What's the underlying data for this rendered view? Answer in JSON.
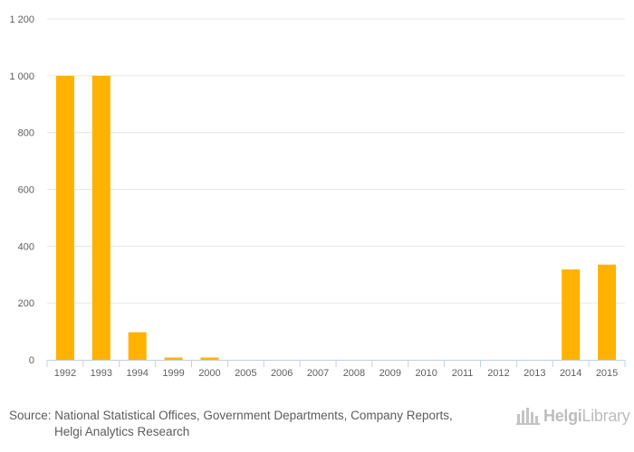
{
  "chart_data": {
    "type": "bar",
    "categories": [
      "1992",
      "1993",
      "1994",
      "1999",
      "2000",
      "2005",
      "2006",
      "2007",
      "2008",
      "2009",
      "2010",
      "2011",
      "2012",
      "2013",
      "2014",
      "2015"
    ],
    "values": [
      1000,
      1000,
      97,
      8,
      8,
      0,
      0,
      0,
      0,
      0,
      0,
      0,
      0,
      0,
      318,
      335
    ],
    "ylim": [
      0,
      1200
    ],
    "yticks": [
      0,
      200,
      400,
      600,
      800,
      1000,
      1200
    ],
    "ytick_labels": [
      "0",
      "200",
      "400",
      "600",
      "800",
      "1 000",
      "1 200"
    ],
    "title": "",
    "xlabel": "",
    "ylabel": "",
    "grid": true,
    "bar_color": "#FFB200"
  },
  "source": {
    "line1": "Source: National Statistical Offices, Government Departments, Company Reports,",
    "line2": "Helgi Analytics Research"
  },
  "logo": {
    "part1": "Helgi",
    "part2": "Library"
  }
}
